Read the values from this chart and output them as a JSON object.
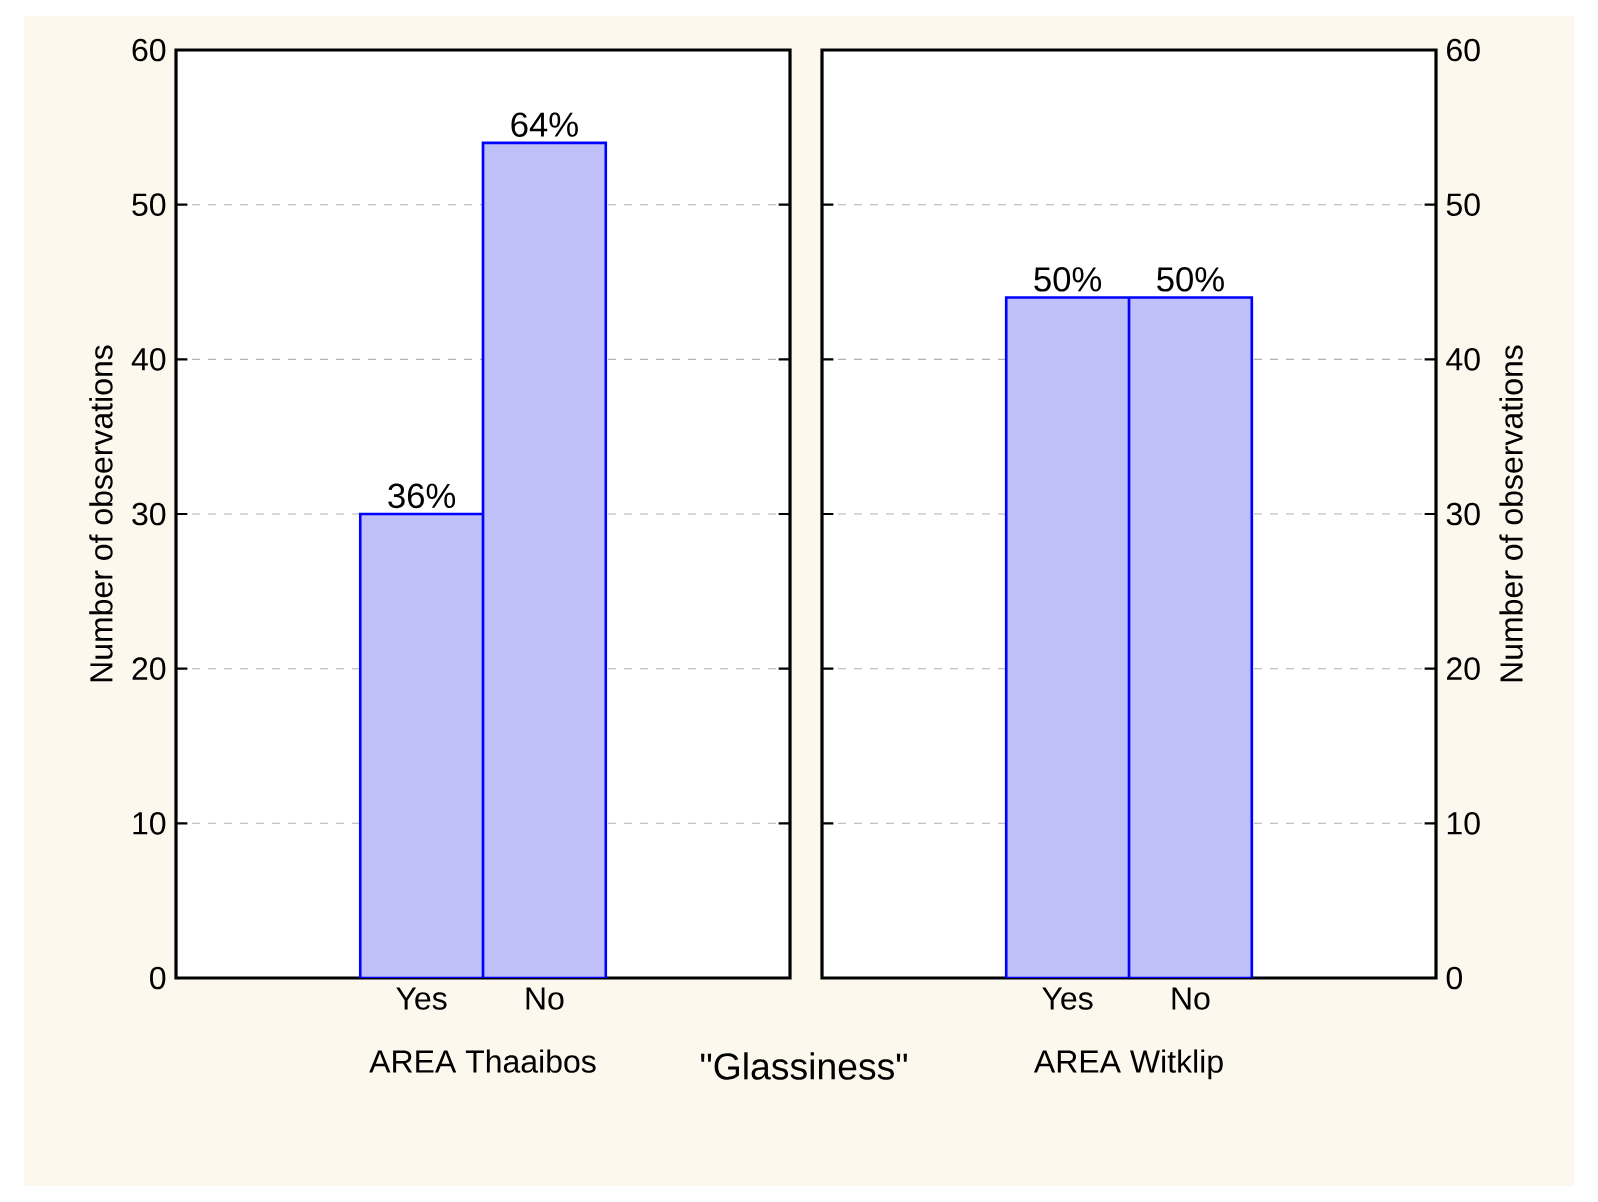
{
  "chart_data": [
    {
      "type": "bar",
      "xlabel": "AREA Thaaibos",
      "ylabel": "Number of observations",
      "categories": [
        "Yes",
        "No"
      ],
      "values": [
        30,
        54
      ],
      "color": "#c0c0f8",
      "ylim": [
        0,
        60
      ],
      "yticks": [
        0,
        10,
        20,
        30,
        40,
        50,
        60
      ],
      "grid": "y",
      "annotations": [
        {
          "text": "36%",
          "x": "Yes",
          "y": 30
        },
        {
          "text": "64%",
          "x": "No",
          "y": 54
        },
        "\"Glassiness\""
      ]
    },
    {
      "type": "bar",
      "xlabel": "AREA Witklip",
      "ylabel": "Number of observations",
      "categories": [
        "Yes",
        "No"
      ],
      "values": [
        44,
        44
      ],
      "color": "#c0c0f8",
      "ylim": [
        0,
        60
      ],
      "yticks": [
        0,
        10,
        20,
        30,
        40,
        50,
        60
      ],
      "grid": "y",
      "annotations": [
        {
          "text": "50%",
          "x": "Yes",
          "y": 44
        },
        {
          "text": "50%",
          "x": "No",
          "y": 44
        }
      ]
    }
  ]
}
